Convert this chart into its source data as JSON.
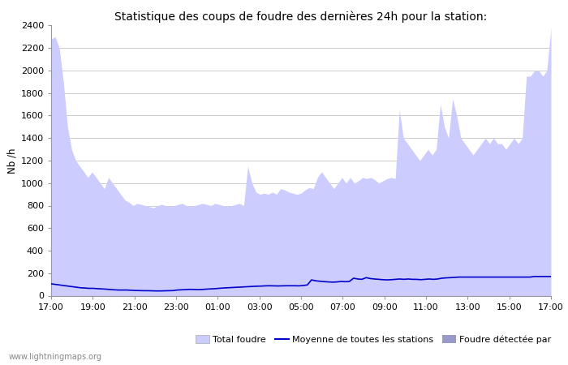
{
  "title": "Statistique des coups de foudre des dernières 24h pour la station:",
  "ylabel": "Nb /h",
  "ylim": [
    0,
    2400
  ],
  "yticks": [
    0,
    200,
    400,
    600,
    800,
    1000,
    1200,
    1400,
    1600,
    1800,
    2000,
    2200,
    2400
  ],
  "xtick_labels": [
    "17:00",
    "19:00",
    "21:00",
    "23:00",
    "01:00",
    "03:00",
    "05:00",
    "07:00",
    "09:00",
    "11:00",
    "13:00",
    "15:00",
    "17:00"
  ],
  "watermark": "www.lightningmaps.org",
  "fill_color": "#ccccff",
  "fill_color2": "#9999cc",
  "line_color": "#0000cc",
  "bg_color": "#ffffff",
  "grid_color": "#cccccc",
  "total_foudre": [
    2280,
    2300,
    2200,
    1900,
    1500,
    1300,
    1200,
    1150,
    1100,
    1050,
    1100,
    1050,
    1000,
    950,
    1050,
    1000,
    950,
    900,
    850,
    830,
    800,
    820,
    810,
    800,
    790,
    780,
    800,
    810,
    800,
    790,
    800,
    810,
    820,
    800,
    790,
    800,
    810,
    820,
    810,
    800,
    820,
    810,
    800,
    790,
    800,
    810,
    820,
    800,
    1150,
    1000,
    920,
    900,
    910,
    900,
    920,
    900,
    950,
    940,
    920,
    910,
    900,
    910,
    940,
    960,
    950,
    1050,
    1100,
    1050,
    1000,
    950,
    1000,
    1050,
    1000,
    1050,
    1000,
    1020,
    1050,
    1040,
    1050,
    1030,
    1000,
    1020,
    1040,
    1050,
    1040,
    1650,
    1400,
    1350,
    1300,
    1250,
    1200,
    1250,
    1300,
    1250,
    1300,
    1700,
    1500,
    1400,
    1750,
    1600,
    1400,
    1350,
    1300,
    1250,
    1300,
    1350,
    1400,
    1350,
    1400,
    1350,
    1350,
    1300,
    1350,
    1400,
    1350,
    1400,
    1950,
    1950,
    2000,
    2000,
    1950,
    2000,
    2380
  ],
  "moyenne": [
    105,
    100,
    95,
    90,
    85,
    80,
    75,
    70,
    68,
    65,
    65,
    62,
    60,
    58,
    55,
    52,
    50,
    50,
    50,
    48,
    46,
    45,
    44,
    44,
    43,
    42,
    42,
    43,
    44,
    45,
    50,
    52,
    54,
    56,
    55,
    54,
    55,
    58,
    60,
    62,
    65,
    68,
    70,
    72,
    74,
    76,
    78,
    80,
    82,
    84,
    85,
    87,
    88,
    87,
    86,
    87,
    88,
    88,
    88,
    87,
    90,
    95,
    140,
    132,
    128,
    125,
    122,
    120,
    122,
    126,
    124,
    126,
    155,
    148,
    145,
    160,
    152,
    148,
    145,
    142,
    140,
    142,
    145,
    148,
    145,
    148,
    145,
    145,
    142,
    145,
    148,
    145,
    148,
    155,
    158,
    160,
    162,
    165,
    165,
    165,
    165,
    165,
    165,
    165,
    165,
    165,
    165,
    165,
    165,
    165,
    165,
    165,
    165,
    165,
    165,
    170,
    170,
    170,
    170,
    170
  ],
  "legend_labels": [
    "Total foudre",
    "Moyenne de toutes les stations",
    "Foudre détectée par"
  ]
}
